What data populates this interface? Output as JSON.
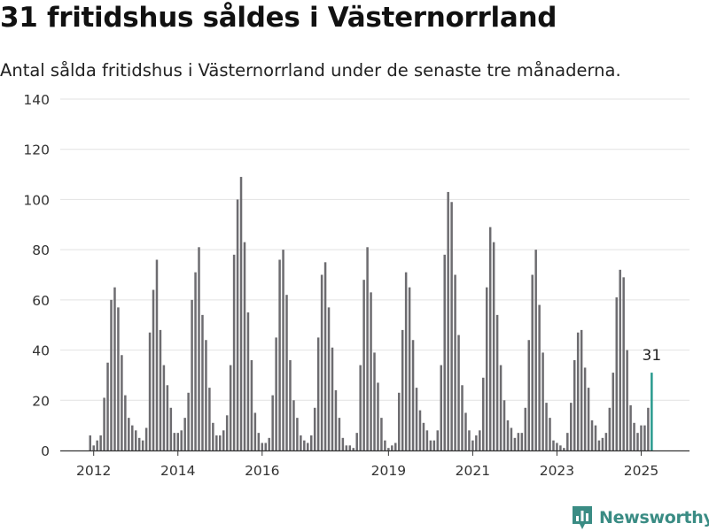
{
  "header": {
    "title": "31 fritidshus såldes i Västernorrland",
    "subtitle": "Antal sålda fritidshus i Västernorrland under de senaste tre månaderna."
  },
  "brand": {
    "name": "Newsworthy",
    "icon": "newsworthy-logo-icon",
    "color": "#3a8c84"
  },
  "chart_data": {
    "type": "bar",
    "title": "31 fritidshus såldes i Västernorrland",
    "subtitle": "Antal sålda fritidshus i Västernorrland under de senaste tre månaderna.",
    "xlabel": "",
    "ylabel": "",
    "ylim": [
      0,
      140
    ],
    "yticks": [
      0,
      20,
      40,
      60,
      80,
      100,
      120,
      140
    ],
    "xticks": [
      "2012",
      "2014",
      "2016",
      "2019",
      "2021",
      "2023",
      "2025"
    ],
    "grid": true,
    "bar_color": "#6d6c70",
    "highlight_color": "#2a9a8e",
    "highlight_label": "31",
    "x_start": "2011-12",
    "x_end": "2025-05",
    "values": [
      6,
      2,
      4,
      6,
      21,
      35,
      60,
      65,
      57,
      38,
      22,
      13,
      10,
      8,
      5,
      4,
      9,
      47,
      64,
      76,
      48,
      34,
      26,
      17,
      7,
      7,
      8,
      13,
      23,
      60,
      71,
      81,
      54,
      44,
      25,
      11,
      6,
      6,
      8,
      14,
      34,
      78,
      100,
      109,
      83,
      55,
      36,
      15,
      7,
      3,
      3,
      5,
      22,
      45,
      76,
      80,
      62,
      36,
      20,
      13,
      6,
      4,
      3,
      6,
      17,
      45,
      70,
      75,
      57,
      41,
      24,
      13,
      5,
      2,
      2,
      1,
      7,
      34,
      68,
      81,
      63,
      39,
      27,
      13,
      4,
      1,
      2,
      3,
      23,
      48,
      71,
      65,
      44,
      25,
      16,
      11,
      8,
      4,
      4,
      8,
      34,
      78,
      103,
      99,
      70,
      46,
      26,
      15,
      8,
      4,
      6,
      8,
      29,
      65,
      89,
      83,
      54,
      34,
      20,
      12,
      9,
      5,
      7,
      7,
      17,
      44,
      70,
      80,
      58,
      39,
      19,
      13,
      4,
      3,
      2,
      1,
      7,
      19,
      36,
      47,
      48,
      33,
      25,
      12,
      10,
      4,
      5,
      7,
      17,
      31,
      61,
      72,
      69,
      40,
      18,
      11,
      7,
      10,
      10,
      17,
      31
    ]
  }
}
